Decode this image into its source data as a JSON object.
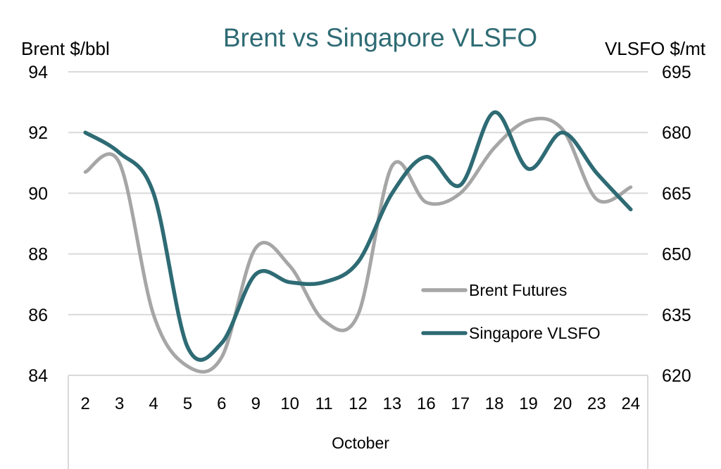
{
  "chart_data": {
    "type": "line",
    "title": "Brent vs Singapore VLSFO",
    "xlabel": "October",
    "ylabel_left": "Brent $/bbl",
    "ylabel_right": "VLSFO $/mt",
    "categories": [
      "2",
      "3",
      "4",
      "5",
      "6",
      "9",
      "10",
      "11",
      "12",
      "13",
      "16",
      "17",
      "18",
      "19",
      "20",
      "23",
      "24"
    ],
    "y_left": {
      "min": 84,
      "max": 94,
      "ticks": [
        84,
        86,
        88,
        90,
        92,
        94
      ]
    },
    "y_right": {
      "min": 620,
      "max": 695,
      "ticks": [
        620,
        635,
        650,
        665,
        680,
        695
      ]
    },
    "grid": true,
    "legend_position": "right-center",
    "series": [
      {
        "name": "Brent Futures",
        "axis": "left",
        "color": "#a6a6a6",
        "values": [
          90.7,
          91.0,
          86.0,
          84.3,
          84.6,
          88.2,
          87.6,
          85.8,
          86.0,
          90.9,
          89.7,
          90.0,
          91.5,
          92.4,
          92.1,
          89.8,
          90.2
        ]
      },
      {
        "name": "Singapore VLSFO",
        "axis": "right",
        "color": "#2e6b74",
        "values": [
          680,
          675,
          665,
          627,
          628,
          645,
          643,
          643,
          648,
          665,
          674,
          667,
          685,
          671,
          680,
          670,
          661
        ]
      }
    ]
  },
  "colors": {
    "title": "#2e6b74",
    "text": "#000000",
    "grid": "#d9d9d9"
  }
}
